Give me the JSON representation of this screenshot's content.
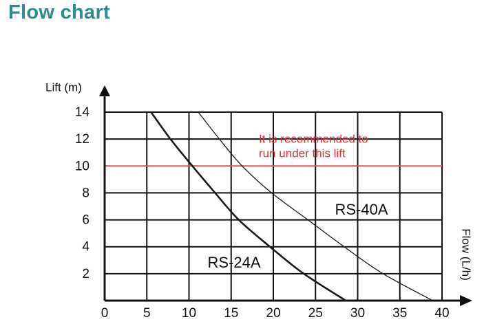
{
  "chart_data": {
    "type": "line",
    "title": "Flow chart",
    "xlabel": "Flow (L/h)",
    "ylabel": "Lift (m)",
    "xlim": [
      0,
      40
    ],
    "ylim": [
      0,
      14
    ],
    "xticks": [
      0,
      5,
      10,
      15,
      20,
      25,
      30,
      35,
      40
    ],
    "yticks": [
      2,
      4,
      6,
      8,
      10,
      12,
      14
    ],
    "grid": true,
    "reference_line": {
      "y": 10,
      "color": "#e0505a"
    },
    "annotation": [
      "It is recommended to",
      "run under this lift"
    ],
    "annotation_color": "#d8323c",
    "series": [
      {
        "name": "RS-24A",
        "color": "#1a1a1a",
        "x": [
          5.5,
          7.8,
          10.4,
          13.1,
          15.9,
          19.6,
          23.6,
          28.6
        ],
        "values": [
          14,
          12,
          10,
          8,
          6,
          4,
          2,
          0
        ]
      },
      {
        "name": "RS-40A",
        "color": "#1a1a1a",
        "x": [
          11.1,
          13.6,
          16.3,
          19.8,
          24.1,
          28.4,
          33.0,
          38.9
        ],
        "values": [
          14,
          12,
          10,
          8,
          6,
          4,
          2,
          0
        ]
      }
    ]
  }
}
